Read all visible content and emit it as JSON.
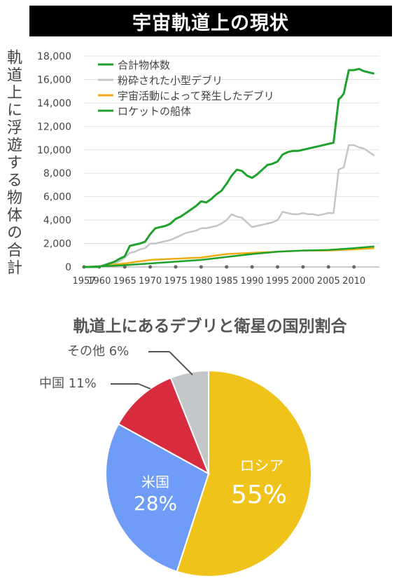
{
  "page_title": "宇宙軌道上の現状",
  "colors": {
    "green": "#1fa12e",
    "gray": "#c2c6c9",
    "orange": "#efac13"
  },
  "chart_data": [
    {
      "type": "line",
      "ylabel": "軌道上に浮遊する物体の合計",
      "xlabel": "",
      "ylim": [
        0,
        18000
      ],
      "xlim": [
        1957,
        2015
      ],
      "y_ticks": [
        "0",
        "2,000",
        "4,000",
        "6,000",
        "8,000",
        "10,000",
        "12,000",
        "14,000",
        "16,000",
        "18,000"
      ],
      "y_tick_values": [
        0,
        2000,
        4000,
        6000,
        8000,
        10000,
        12000,
        14000,
        16000,
        18000
      ],
      "x_ticks": [
        "1957",
        "1960",
        "1965",
        "1970",
        "1975",
        "1980",
        "1985",
        "1990",
        "1995",
        "2000",
        "2005",
        "2010"
      ],
      "x_tick_values": [
        1957,
        1960,
        1965,
        1970,
        1975,
        1980,
        1985,
        1990,
        1995,
        2000,
        2005,
        2010
      ],
      "legend_position": "top-left",
      "series": [
        {
          "name": "合計物体数",
          "color": "#1fa12e",
          "x": [
            1957,
            1959,
            1960,
            1961,
            1962,
            1963,
            1964,
            1965,
            1966,
            1967,
            1968,
            1969,
            1970,
            1971,
            1972,
            1973,
            1974,
            1975,
            1976,
            1977,
            1978,
            1979,
            1980,
            1981,
            1982,
            1983,
            1984,
            1985,
            1986,
            1987,
            1988,
            1989,
            1990,
            1991,
            1992,
            1993,
            1994,
            1995,
            1996,
            1997,
            1998,
            1999,
            2000,
            2001,
            2002,
            2003,
            2004,
            2005,
            2006,
            2007,
            2007.5,
            2008,
            2009,
            2010,
            2011,
            2012,
            2013,
            2014
          ],
          "y": [
            0,
            0,
            20,
            150,
            300,
            450,
            700,
            900,
            1800,
            1900,
            2000,
            2150,
            2800,
            3300,
            3400,
            3500,
            3700,
            4100,
            4300,
            4600,
            4900,
            5200,
            5600,
            5500,
            5800,
            6200,
            6500,
            7100,
            7800,
            8300,
            8200,
            7800,
            7600,
            7900,
            8300,
            8700,
            8800,
            9000,
            9600,
            9800,
            9900,
            9900,
            10000,
            10100,
            10200,
            10300,
            10400,
            10500,
            10600,
            14300,
            14500,
            14800,
            16800,
            16800,
            16900,
            16700,
            16600,
            16500
          ]
        },
        {
          "name": "粉砕された小型デブリ",
          "color": "#c2c6c9",
          "x": [
            1957,
            1960,
            1961,
            1962,
            1963,
            1964,
            1965,
            1966,
            1967,
            1968,
            1969,
            1970,
            1971,
            1972,
            1973,
            1974,
            1975,
            1976,
            1977,
            1978,
            1979,
            1980,
            1981,
            1982,
            1983,
            1984,
            1985,
            1986,
            1987,
            1988,
            1989,
            1990,
            1991,
            1992,
            1993,
            1994,
            1995,
            1996,
            1997,
            1998,
            1999,
            2000,
            2001,
            2002,
            2003,
            2004,
            2005,
            2006,
            2007,
            2008,
            2009,
            2010,
            2011,
            2012,
            2013,
            2014
          ],
          "y": [
            0,
            0,
            100,
            200,
            300,
            500,
            800,
            1200,
            1300,
            1500,
            1600,
            2000,
            2000,
            2100,
            2200,
            2300,
            2500,
            2700,
            2900,
            3000,
            3100,
            3300,
            3300,
            3400,
            3500,
            3700,
            4000,
            4500,
            4300,
            4200,
            3800,
            3400,
            3500,
            3600,
            3700,
            3800,
            4000,
            4700,
            4600,
            4500,
            4500,
            4600,
            4500,
            4500,
            4400,
            4500,
            4600,
            4600,
            8300,
            8500,
            10400,
            10400,
            10200,
            10100,
            9800,
            9500
          ]
        },
        {
          "name": "宇宙活動によって発生したデブリ",
          "color": "#efac13",
          "x": [
            1957,
            1960,
            1965,
            1970,
            1975,
            1980,
            1985,
            1990,
            1995,
            2000,
            2005,
            2010,
            2014
          ],
          "y": [
            0,
            50,
            300,
            600,
            700,
            800,
            1100,
            1200,
            1300,
            1400,
            1400,
            1500,
            1600
          ]
        },
        {
          "name": "ロケットの船体",
          "color": "#1fa12e",
          "x": [
            1957,
            1960,
            1965,
            1970,
            1975,
            1980,
            1985,
            1990,
            1995,
            2000,
            2005,
            2010,
            2014
          ],
          "y": [
            0,
            50,
            150,
            300,
            450,
            600,
            850,
            1100,
            1300,
            1400,
            1450,
            1600,
            1750
          ]
        }
      ]
    },
    {
      "type": "pie",
      "title": "軌道上にあるデブリと衛星の国別割合",
      "categories": [
        "ロシア",
        "米国",
        "中国",
        "その他"
      ],
      "values": [
        55,
        28,
        11,
        6
      ],
      "labels": [
        "55%",
        "28%",
        "11%",
        "6%"
      ],
      "colors": [
        "#f0c31a",
        "#6e9cf7",
        "#d92b3e",
        "#c4c7ca"
      ],
      "outside_labels": {
        "china": "中国 11%",
        "other": "その他 6%"
      }
    }
  ]
}
